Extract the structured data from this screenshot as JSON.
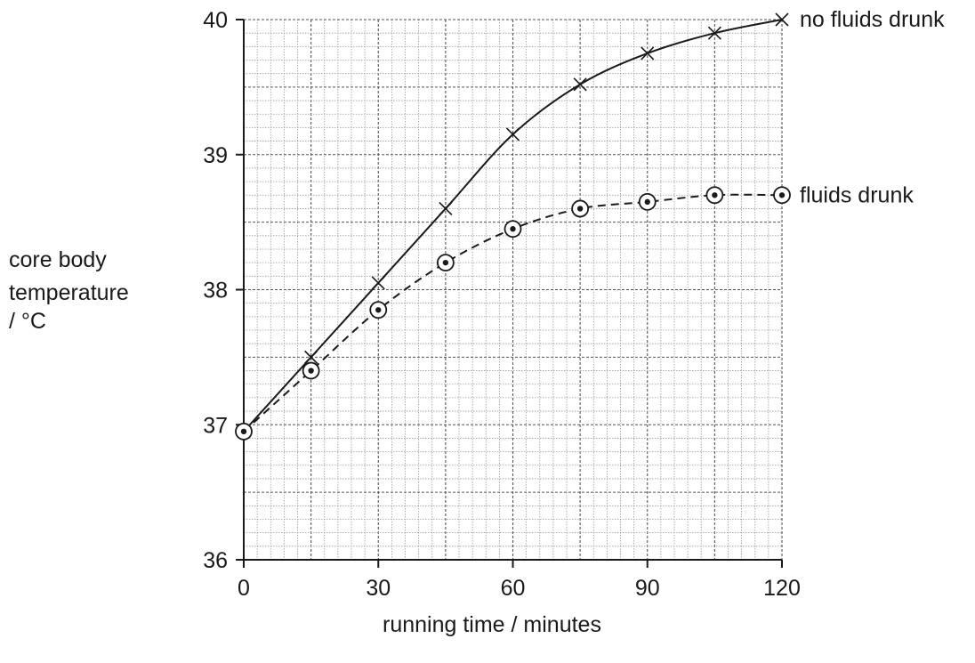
{
  "chart_data": {
    "type": "line",
    "xlabel": "running time / minutes",
    "ylabel_lines": [
      "core body",
      "temperature",
      "/ °C"
    ],
    "x_ticks": [
      0,
      30,
      60,
      90,
      120
    ],
    "y_ticks": [
      36,
      37,
      38,
      39,
      40
    ],
    "xlim": [
      0,
      120
    ],
    "ylim": [
      36,
      40
    ],
    "grid": true,
    "x": [
      0,
      15,
      30,
      45,
      60,
      75,
      90,
      105,
      120
    ],
    "series": [
      {
        "name": "no fluids drunk",
        "marker": "cross",
        "line_style": "solid",
        "values": [
          36.95,
          37.5,
          38.05,
          38.6,
          39.15,
          39.52,
          39.75,
          39.9,
          40.0
        ]
      },
      {
        "name": "fluids drunk",
        "marker": "circled-dot",
        "line_style": "dashed",
        "values": [
          36.95,
          37.4,
          37.85,
          38.2,
          38.45,
          38.6,
          38.65,
          38.7,
          38.7
        ]
      }
    ]
  }
}
